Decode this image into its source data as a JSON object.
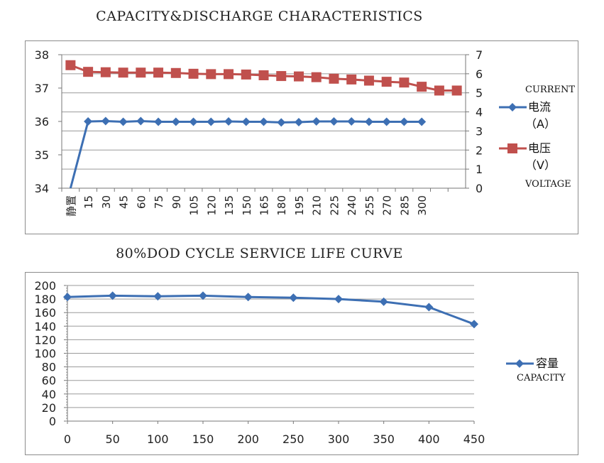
{
  "titles": {
    "top": "CAPACITY&DISCHARGE CHARACTERISTICS",
    "bottom": "80%DOD CYCLE SERVICE LIFE CURVE"
  },
  "colors": {
    "current": "#3d6fb3",
    "voltage": "#c0504d",
    "capacity": "#3d6fb3",
    "grid": "#9a9a9a"
  },
  "chart_data": [
    {
      "type": "line",
      "title": "CAPACITY&DISCHARGE CHARACTERISTICS",
      "categories": [
        "静置",
        "15",
        "30",
        "45",
        "60",
        "75",
        "90",
        "105",
        "120",
        "135",
        "150",
        "165",
        "180",
        "195",
        "210",
        "225",
        "240",
        "255",
        "270",
        "285",
        "300",
        "",
        ""
      ],
      "left_axis": {
        "ylim": [
          34,
          38
        ],
        "ticks": [
          "34",
          "35",
          "36",
          "37",
          "38"
        ]
      },
      "right_axis": {
        "ylim": [
          0,
          7
        ],
        "ticks": [
          "0",
          "1",
          "2",
          "3",
          "4",
          "5",
          "6",
          "7"
        ]
      },
      "grid": true,
      "legend_position": "right",
      "series": [
        {
          "name": "电流",
          "name_en": "CURRENT",
          "unit": "（A）",
          "axis": "left",
          "marker": "diamond",
          "values": [
            34.0,
            36.0,
            36.01,
            35.99,
            36.01,
            35.99,
            35.99,
            35.99,
            35.99,
            36.0,
            35.99,
            35.99,
            35.97,
            35.98,
            36.0,
            36.0,
            36.0,
            35.99,
            35.99,
            35.99,
            35.99,
            null,
            null
          ]
        },
        {
          "name": "电压",
          "name_en": "VOLTAGE",
          "unit": "（V）",
          "axis": "right",
          "marker": "square",
          "values": [
            6.45,
            6.1,
            6.08,
            6.06,
            6.06,
            6.06,
            6.04,
            6.0,
            5.98,
            5.98,
            5.96,
            5.92,
            5.88,
            5.86,
            5.82,
            5.74,
            5.7,
            5.64,
            5.58,
            5.54,
            5.32,
            5.12,
            5.12
          ]
        }
      ]
    },
    {
      "type": "line",
      "title": "80%DOD CYCLE SERVICE LIFE CURVE",
      "x": [
        0,
        50,
        100,
        150,
        200,
        250,
        300,
        350,
        400,
        450
      ],
      "xlim": [
        0,
        450
      ],
      "ylim": [
        0,
        200
      ],
      "yticks": [
        0,
        20,
        40,
        60,
        80,
        100,
        120,
        140,
        160,
        180,
        200
      ],
      "grid": true,
      "legend_position": "right",
      "series": [
        {
          "name": "容量",
          "name_en": "CAPACITY",
          "marker": "diamond",
          "values": [
            183,
            185,
            184,
            185,
            183,
            182,
            180,
            176,
            168,
            143
          ]
        }
      ]
    }
  ]
}
